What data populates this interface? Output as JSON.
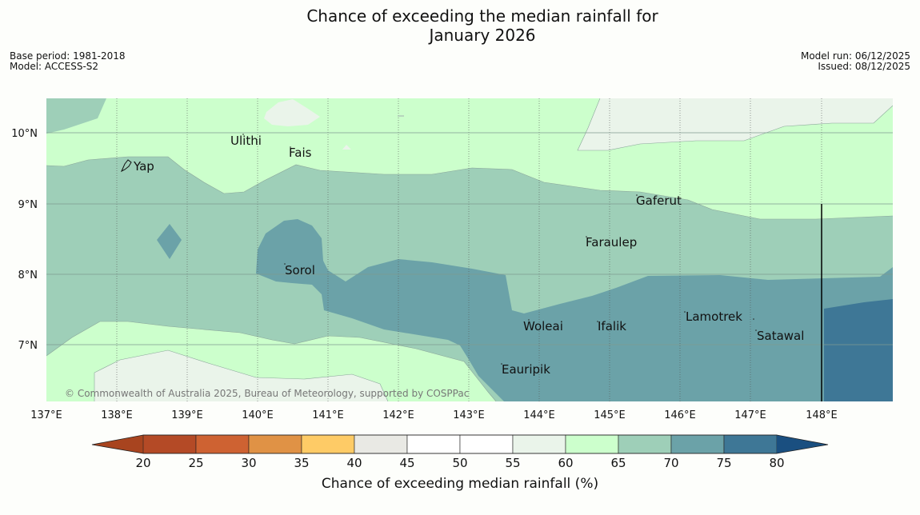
{
  "title": {
    "line1": "Chance of exceeding the median rainfall for",
    "line2": "January 2026"
  },
  "meta": {
    "base_period": "Base period: 1981-2018",
    "model": "Model: ACCESS-S2",
    "model_run": "Model run: 06/12/2025",
    "issued": "Issued: 08/12/2025"
  },
  "map": {
    "credit": "© Commonwealth of Australia 2025, Bureau of Meteorology, supported by COSPPac",
    "lon_labels": [
      "137°E",
      "138°E",
      "139°E",
      "140°E",
      "141°E",
      "142°E",
      "143°E",
      "144°E",
      "145°E",
      "146°E",
      "147°E",
      "148°E"
    ],
    "lat_labels": [
      "10°N",
      "9°N",
      "8°N",
      "7°N"
    ],
    "places": [
      "Ulithi",
      "Fais",
      "Yap",
      "Gaferut",
      "Faraulep",
      "Sorol",
      "Lamotrek",
      "Woleai",
      "Ifalik",
      "Satawal",
      "Eauripik"
    ]
  },
  "colorbar": {
    "ticks": [
      "20",
      "25",
      "30",
      "35",
      "40",
      "45",
      "50",
      "55",
      "60",
      "65",
      "70",
      "75",
      "80"
    ],
    "label": "Chance of exceeding median rainfall (%)",
    "colors": [
      "#a8441f",
      "#b44a26",
      "#ce6232",
      "#e09245",
      "#fecb66",
      "#e9e9e4",
      "#ffffff",
      "#ffffff",
      "#eaf4ea",
      "#ccffcc",
      "#9ecfb8",
      "#6ba2a8",
      "#3e7796",
      "#1a4f80"
    ]
  }
}
